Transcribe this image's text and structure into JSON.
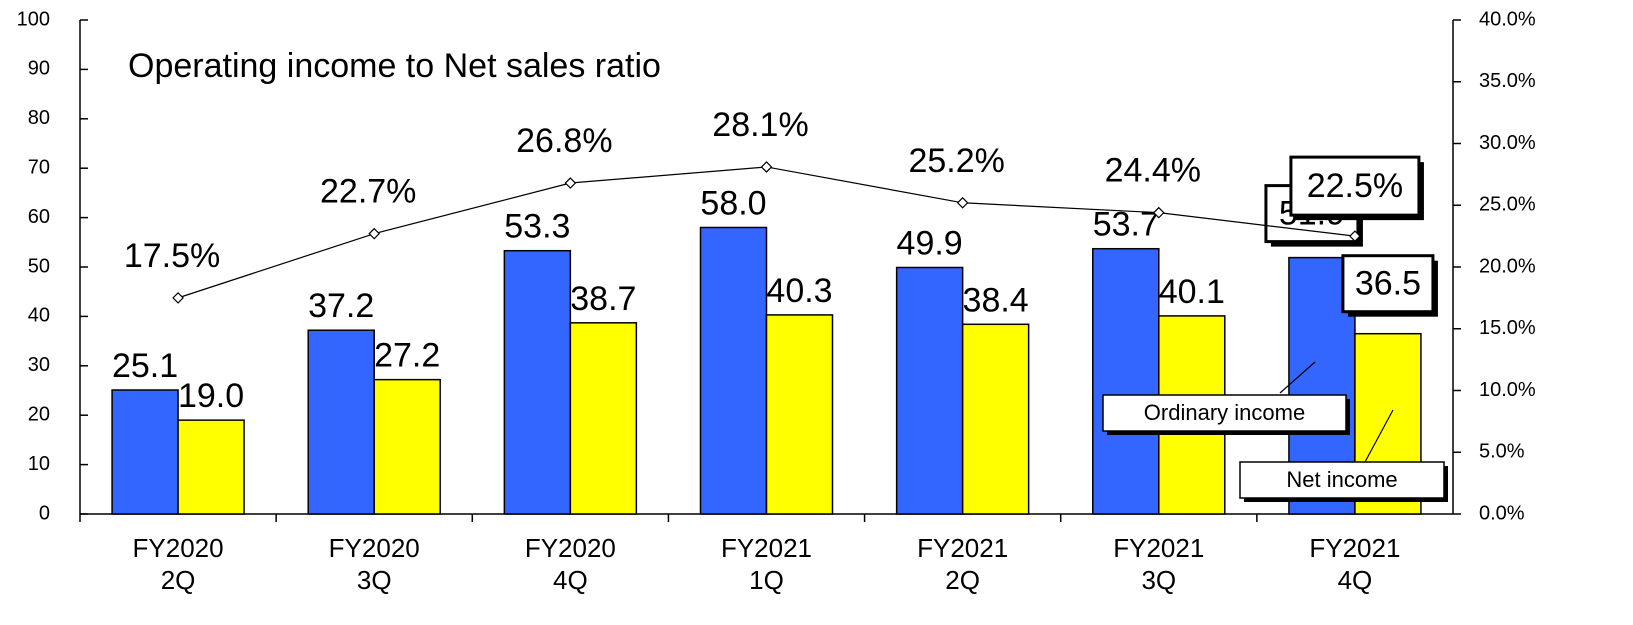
{
  "chart_data": {
    "type": "bar",
    "categories": [
      [
        "FY2020",
        "2Q"
      ],
      [
        "FY2020",
        "3Q"
      ],
      [
        "FY2020",
        "4Q"
      ],
      [
        "FY2021",
        "1Q"
      ],
      [
        "FY2021",
        "2Q"
      ],
      [
        "FY2021",
        "3Q"
      ],
      [
        "FY2021",
        "4Q"
      ]
    ],
    "series": [
      {
        "name": "Ordinary income",
        "color": "#3366ff",
        "values": [
          25.1,
          37.2,
          53.3,
          58.0,
          49.9,
          53.7,
          51.9
        ],
        "value_labels": [
          "25.1",
          "37.2",
          "53.3",
          "58.0",
          "49.9",
          "53.7",
          "51.9"
        ]
      },
      {
        "name": "Net income",
        "color": "#ffff00",
        "values": [
          19.0,
          27.2,
          38.7,
          40.3,
          38.4,
          40.1,
          36.5
        ],
        "value_labels": [
          "19.0",
          "27.2",
          "38.7",
          "40.3",
          "38.4",
          "40.1",
          "36.5"
        ]
      },
      {
        "name": "Operating income to Net sales ratio",
        "type": "line",
        "axis": "y2",
        "color": "#000000",
        "values": [
          17.5,
          22.7,
          26.8,
          28.1,
          25.2,
          24.4,
          22.5
        ],
        "value_labels": [
          "17.5%",
          "22.7%",
          "26.8%",
          "28.1%",
          "25.2%",
          "24.4%",
          "22.5%"
        ]
      }
    ],
    "ylim": [
      0,
      100
    ],
    "yticks": [
      0,
      10,
      20,
      30,
      40,
      50,
      60,
      70,
      80,
      90,
      100
    ],
    "y2lim": [
      0,
      40
    ],
    "y2ticks": [
      {
        "value": 0,
        "label": "0.0%"
      },
      {
        "value": 5,
        "label": "5.0%"
      },
      {
        "value": 10,
        "label": "10.0%"
      },
      {
        "value": 15,
        "label": "15.0%"
      },
      {
        "value": 20,
        "label": "20.0%"
      },
      {
        "value": 25,
        "label": "25.0%"
      },
      {
        "value": 30,
        "label": "30.0%"
      },
      {
        "value": 35,
        "label": "35.0%"
      },
      {
        "value": 40,
        "label": "40.0%"
      }
    ]
  }
}
